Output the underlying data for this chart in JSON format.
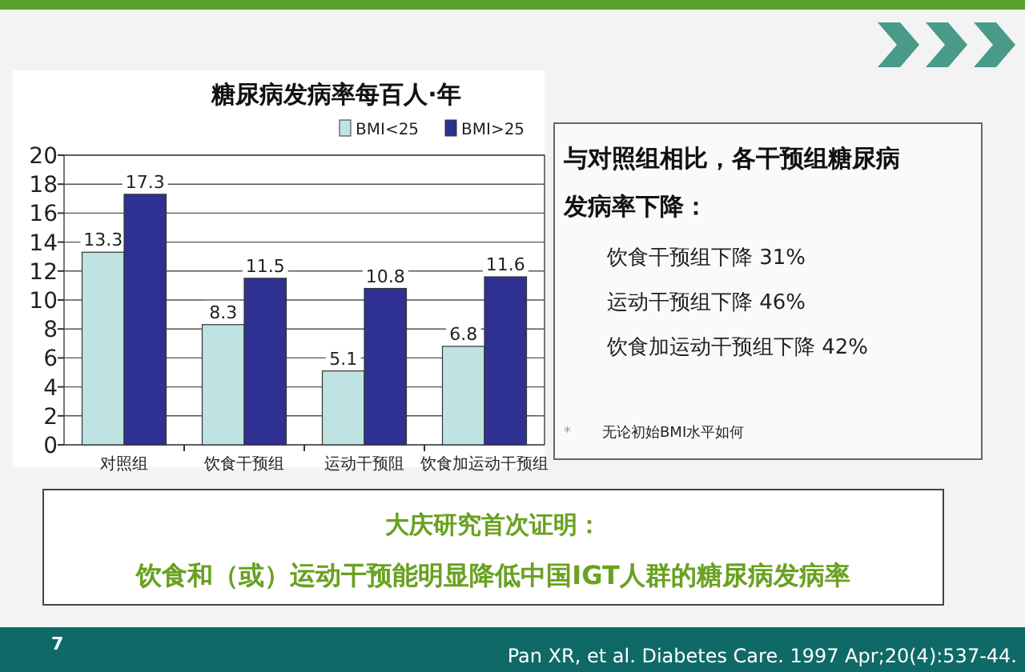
{
  "chart_data": {
    "type": "bar",
    "title": "糖尿病发病率每百人·年",
    "categories": [
      "对照组",
      "饮食干预组",
      "运动干预阻",
      "饮食加运动干预组"
    ],
    "series": [
      {
        "name": "BMI<25",
        "color": "#bfe3e3",
        "values": [
          13.3,
          8.3,
          5.1,
          6.8
        ]
      },
      {
        "name": "BMI>25",
        "color": "#2e3192",
        "values": [
          17.3,
          11.5,
          10.8,
          11.6
        ]
      }
    ],
    "ylim": [
      0,
      20
    ],
    "yticks": [
      0,
      2,
      4,
      6,
      8,
      10,
      12,
      14,
      16,
      18,
      20
    ],
    "grid": "y",
    "legend": "top right",
    "data_labels": true,
    "annotations": [
      "与对照组相比，各干预组糖尿病",
      "发病率下降：",
      "饮食干预组下降 31%",
      "运动干预组下降 46%",
      "饮食加运动干预组下降 42%",
      "*",
      "无论初始BMI水平如何",
      "大庆研究首次证明：",
      "饮食和（或）运动干预能明显降低中国IGT人群的糖尿病发病率",
      "7",
      "Pan XR, et al. Diabetes Care. 1997 Apr;20(4):537-44."
    ]
  }
}
